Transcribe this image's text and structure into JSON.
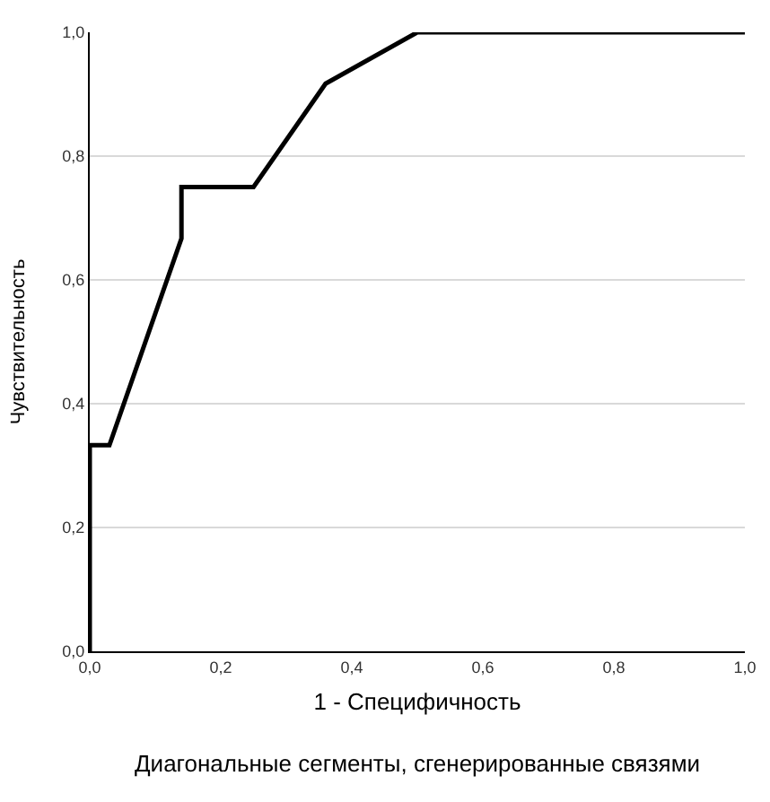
{
  "chart_data": {
    "type": "line",
    "xlabel": "1 - Специфичность",
    "ylabel": "Чувствительность",
    "x": [
      0,
      0,
      0.03,
      0.14,
      0.14,
      0.25,
      0.36,
      0.5,
      1
    ],
    "series": [
      {
        "color": "#000000",
        "values": [
          0,
          0.333,
          0.333,
          0.667,
          0.75,
          0.75,
          0.917,
          1,
          1
        ]
      }
    ],
    "xlim": [
      0,
      1
    ],
    "ylim": [
      0,
      1
    ],
    "xticks": [
      {
        "value": 0,
        "label": "0,0"
      },
      {
        "value": 0.2,
        "label": "0,2"
      },
      {
        "value": 0.4,
        "label": "0,4"
      },
      {
        "value": 0.6,
        "label": "0,6"
      },
      {
        "value": 0.8,
        "label": "0,8"
      },
      {
        "value": 1,
        "label": "1,0"
      }
    ],
    "yticks": [
      {
        "value": 0,
        "label": "0,0"
      },
      {
        "value": 0.2,
        "label": "0,2"
      },
      {
        "value": 0.4,
        "label": "0,4"
      },
      {
        "value": 0.6,
        "label": "0,6"
      },
      {
        "value": 0.8,
        "label": "0,8"
      },
      {
        "value": 1,
        "label": "1,0"
      }
    ],
    "grid": "y",
    "marker": "none",
    "line_style": "solid",
    "annotations": [
      "Диагональные сегменты, сгенерированные связями"
    ]
  }
}
